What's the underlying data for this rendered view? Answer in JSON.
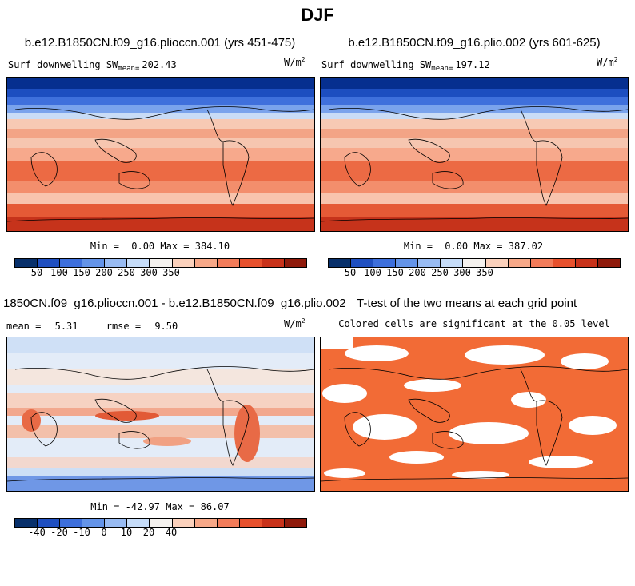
{
  "figure_title": "DJF",
  "panels": {
    "top_left": {
      "case": "b.e12.B1850CN.f09_g16.plioccn.001 (yrs 451-475)",
      "field": "Surf downwelling SW",
      "mean_label": "mean=",
      "mean_value": "202.43",
      "units_base": "W/m",
      "units_exp": "2",
      "min_label": "Min =",
      "min_value": "0.00",
      "max_label": "Max =",
      "max_value": "384.10"
    },
    "top_right": {
      "case": "b.e12.B1850CN.f09_g16.plio.002 (yrs 601-625)",
      "field": "Surf downwelling SW",
      "mean_label": "mean=",
      "mean_value": "197.12",
      "units_base": "W/m",
      "units_exp": "2",
      "min_label": "Min =",
      "min_value": "0.00",
      "max_label": "Max =",
      "max_value": "387.02"
    },
    "bottom_left": {
      "case": "1850CN.f09_g16.plioccn.001 - b.e12.B1850CN.f09_g16.plio.002",
      "mean_label": "mean =",
      "mean_value": "5.31",
      "rmse_label": "rmse =",
      "rmse_value": "9.50",
      "units_base": "W/m",
      "units_exp": "2",
      "min_label": "Min =",
      "min_value": "-42.97",
      "max_label": "Max =",
      "max_value": "86.07"
    },
    "bottom_right": {
      "title": "T-test of the two means at each grid point",
      "subtitle": "Colored cells are significant at the 0.05 level"
    }
  },
  "colorbars": {
    "abs_ticks": [
      "50",
      "100",
      "150",
      "200",
      "250",
      "300",
      "350"
    ],
    "diff_ticks": [
      "-40",
      "-20",
      "-10",
      "0",
      "10",
      "20",
      "40"
    ],
    "colors": [
      "#08306b",
      "#1f4fc0",
      "#3d6fdc",
      "#6494e8",
      "#98bbf2",
      "#c6dcf8",
      "#f4f1ee",
      "#fbd1bc",
      "#f7a888",
      "#f27c5a",
      "#e7512d",
      "#c8321a",
      "#8f1a0b"
    ]
  },
  "ttest_color": "#f26b36"
}
